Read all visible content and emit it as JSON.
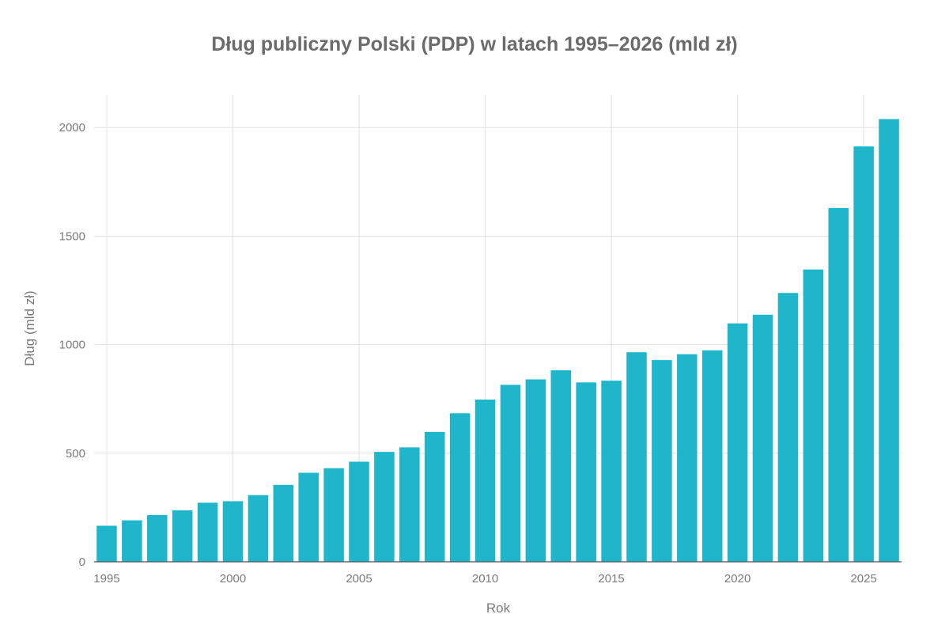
{
  "chart_data": {
    "type": "bar",
    "title": "Dług publiczny Polski (PDP) w latach 1995–2026 (mld zł)",
    "xlabel": "Rok",
    "ylabel": "Dług (mld zł)",
    "categories": [
      1995,
      1996,
      1997,
      1998,
      1999,
      2000,
      2001,
      2002,
      2003,
      2004,
      2005,
      2006,
      2007,
      2008,
      2009,
      2010,
      2011,
      2012,
      2013,
      2014,
      2015,
      2016,
      2017,
      2018,
      2019,
      2020,
      2021,
      2022,
      2023,
      2024,
      2025,
      2026
    ],
    "values": [
      166,
      191,
      215,
      237,
      272,
      279,
      307,
      354,
      410,
      431,
      461,
      506,
      527,
      598,
      684,
      747,
      815,
      840,
      882,
      826,
      834,
      965,
      929,
      956,
      974,
      1098,
      1138,
      1238,
      1346,
      1629,
      1913,
      2039
    ],
    "xticks": [
      1995,
      2000,
      2005,
      2010,
      2015,
      2020,
      2025
    ],
    "yticks": [
      0,
      500,
      1000,
      1500,
      2000
    ],
    "ylim": [
      0,
      2150
    ],
    "xlim": [
      1994.5,
      2026.5
    ],
    "grid": true,
    "bar_color": "#1fb6cb",
    "grid_color": "#e2e2e2",
    "axis_color": "#555555"
  }
}
